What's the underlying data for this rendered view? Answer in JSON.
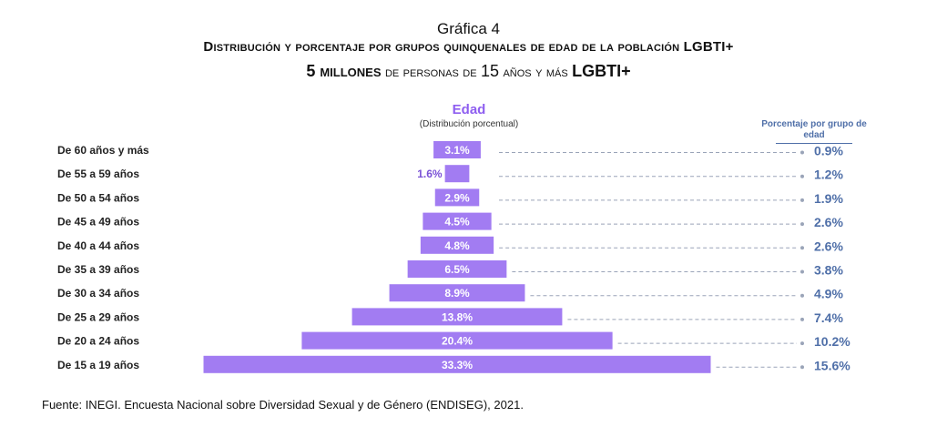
{
  "header": {
    "figure_label": "Gráfica 4",
    "title_line1": "Distribución y porcentaje por grupos quinquenales de edad de la población LGBTI+",
    "title_line2_a": "5 millones",
    "title_line2_b": " de personas de ",
    "title_line2_c": "15",
    "title_line2_d": " años y más ",
    "title_line2_e": "LGBTI+"
  },
  "chart_header": {
    "title": "Edad",
    "subtitle": "(Distribución porcentual)",
    "right_title": "Porcentaje por grupo de edad"
  },
  "colors": {
    "bar": "#a27cf2",
    "bar_text": "#ffffff",
    "right_value": "#4f6fa8",
    "dash": "#9aa4b8"
  },
  "chart_data": {
    "type": "bar",
    "orientation": "horizontal-centered",
    "categories": [
      "De 60 años y más",
      "De 55 a 59 años",
      "De 50 a 54 años",
      "De 45 a 49 años",
      "De 40 a 44 años",
      "De 35 a 39 años",
      "De 30 a 34 años",
      "De 25 a 29 años",
      "De 20 a 24 años",
      "De 15 a 19 años"
    ],
    "series": [
      {
        "name": "Distribución porcentual",
        "values": [
          3.1,
          1.6,
          2.9,
          4.5,
          4.8,
          6.5,
          8.9,
          13.8,
          20.4,
          33.3
        ],
        "labels": [
          "3.1%",
          "1.6%",
          "2.9%",
          "4.5%",
          "4.8%",
          "6.5%",
          "8.9%",
          "13.8%",
          "20.4%",
          "33.3%"
        ]
      },
      {
        "name": "Porcentaje por grupo de edad",
        "values": [
          0.9,
          1.2,
          1.9,
          2.6,
          2.6,
          3.8,
          4.9,
          7.4,
          10.2,
          15.6
        ],
        "labels": [
          "0.9%",
          "1.2%",
          "1.9%",
          "2.6%",
          "2.6%",
          "3.8%",
          "4.9%",
          "7.4%",
          "10.2%",
          "15.6%"
        ]
      }
    ],
    "title": "Edad",
    "xlim": [
      0,
      33.3
    ]
  },
  "footer": {
    "source": "Fuente: INEGI. Encuesta Nacional sobre Diversidad Sexual y de Género (ENDISEG), 2021."
  }
}
